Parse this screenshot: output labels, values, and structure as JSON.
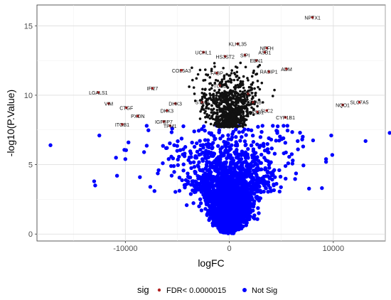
{
  "chart_data": {
    "type": "scatter",
    "title": "",
    "xlabel": "logFC",
    "ylabel": "-log10(P.Value)",
    "xlim": [
      -18500,
      15000
    ],
    "ylim": [
      -0.5,
      16.5
    ],
    "x_ticks": [
      -10000,
      0,
      10000
    ],
    "x_tick_labels": [
      "-10000",
      "0",
      "10000"
    ],
    "y_ticks": [
      0,
      5,
      10,
      15
    ],
    "y_tick_labels": [
      "0",
      "5",
      "10",
      "15"
    ],
    "grid": true,
    "legend": {
      "placement": "bottom",
      "title": "sig",
      "entries": [
        {
          "label": "FDR< 0.0000015",
          "color": "#b22222"
        },
        {
          "label": "Not Sig",
          "color": "#0000ff"
        }
      ]
    },
    "series": [
      {
        "name": "FDR< 0.0000015",
        "color": "#b22222",
        "points": [
          {
            "label": "NPTX1",
            "x": 8000,
            "y": 15.6
          },
          {
            "label": "KLHL35",
            "x": 800,
            "y": 13.7
          },
          {
            "label": "NEFH",
            "x": 3600,
            "y": 13.4
          },
          {
            "label": "UCHL1",
            "x": -2500,
            "y": 13.1
          },
          {
            "label": "ASB1",
            "x": 3400,
            "y": 13.1
          },
          {
            "label": "HS3ST2",
            "x": -400,
            "y": 12.8
          },
          {
            "label": "SIPI",
            "x": 1500,
            "y": 12.9
          },
          {
            "label": "EBN1",
            "x": 2600,
            "y": 12.5
          },
          {
            "label": "ADM",
            "x": 5500,
            "y": 11.9
          },
          {
            "label": "COL5A3",
            "x": -4600,
            "y": 11.8
          },
          {
            "label": "RASIP1",
            "x": 3800,
            "y": 11.7
          },
          {
            "label": "IFI27",
            "x": -7400,
            "y": 10.5
          },
          {
            "label": "LGALS1",
            "x": -12600,
            "y": 10.2
          },
          {
            "label": "SLC7A5",
            "x": 12500,
            "y": 9.5
          },
          {
            "label": "NQO1",
            "x": 10900,
            "y": 9.3
          },
          {
            "label": "VIM",
            "x": -11600,
            "y": 9.4
          },
          {
            "label": "CTGF",
            "x": -9900,
            "y": 9.1
          },
          {
            "label": "DKK3",
            "x": -6000,
            "y": 8.9
          },
          {
            "label": "PXDN",
            "x": -8800,
            "y": 8.5
          },
          {
            "label": "IGFBP7",
            "x": -6300,
            "y": 8.1
          },
          {
            "label": "ITGB1",
            "x": -10300,
            "y": 7.9
          },
          {
            "label": "STMN",
            "x": -2600,
            "y": 9.5
          },
          {
            "label": "TUBB",
            "x": -900,
            "y": 10.7
          },
          {
            "label": "FABP",
            "x": -1200,
            "y": 11.6
          },
          {
            "label": "DHK3",
            "x": -5200,
            "y": 9.4
          },
          {
            "label": "ASB1",
            "x": 2700,
            "y": 8.8
          },
          {
            "label": "SLC2",
            "x": 3600,
            "y": 8.9
          },
          {
            "label": "CYP1B1",
            "x": 5400,
            "y": 8.4
          },
          {
            "label": "PDCD",
            "x": 1800,
            "y": 10.1
          },
          {
            "label": "CRYAB",
            "x": 2300,
            "y": 9.5
          },
          {
            "label": "TPM1",
            "x": -5700,
            "y": 7.8
          }
        ]
      },
      {
        "name": "Not Sig",
        "color": "#0000ff",
        "points": [
          {
            "x": -17200,
            "y": 6.4
          },
          {
            "x": -12500,
            "y": 7.1
          },
          {
            "x": -13000,
            "y": 3.8
          },
          {
            "x": -12900,
            "y": 3.5
          },
          {
            "x": -10800,
            "y": 4.2
          },
          {
            "x": -10900,
            "y": 5.5
          },
          {
            "x": -10000,
            "y": 5.4
          },
          {
            "x": -9700,
            "y": 6.6
          },
          {
            "x": -8600,
            "y": 4.1
          },
          {
            "x": -8200,
            "y": 5.9
          },
          {
            "x": -7600,
            "y": 3.4
          },
          {
            "x": -7200,
            "y": 3.1
          },
          {
            "x": -6800,
            "y": 4.6
          },
          {
            "x": -6400,
            "y": 5.1
          },
          {
            "x": -6000,
            "y": 6.2
          },
          {
            "x": -5600,
            "y": 4.9
          },
          {
            "x": 9300,
            "y": 5.4
          },
          {
            "x": 9300,
            "y": 5.2
          },
          {
            "x": 9900,
            "y": 5.7
          },
          {
            "x": 13100,
            "y": 6.7
          },
          {
            "x": 6600,
            "y": 6.1
          },
          {
            "x": 6800,
            "y": 7.3
          },
          {
            "x": 9800,
            "y": 7.1
          },
          {
            "x": 4800,
            "y": 4.6
          },
          {
            "x": 6100,
            "y": 5.3
          },
          {
            "x": 5200,
            "y": 6.9
          }
        ]
      }
    ]
  }
}
